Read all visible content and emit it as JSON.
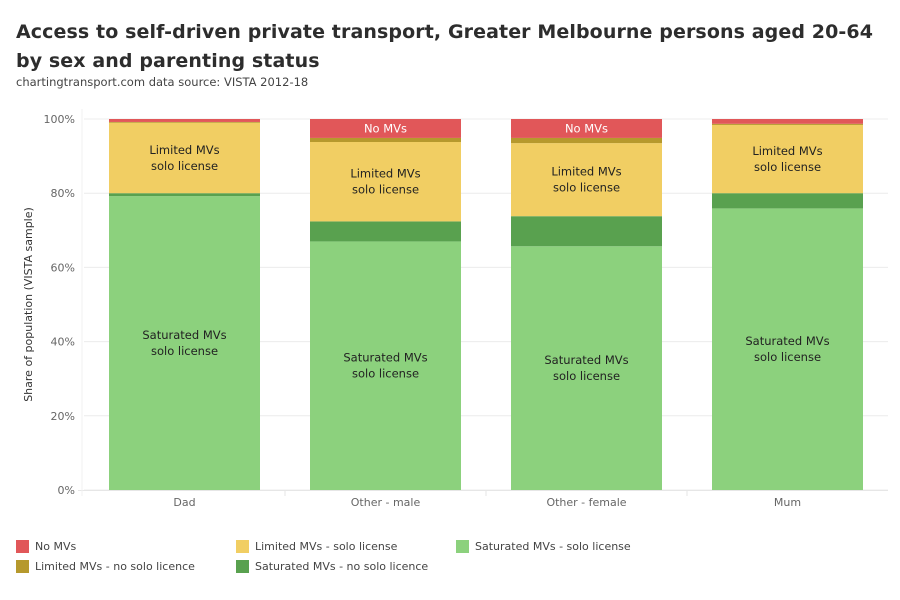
{
  "header": {
    "title": "Access to self-driven private transport, Greater Melbourne persons aged 20-64 by sex and parenting status",
    "subtitle": "chartingtransport.com  data source: VISTA 2012-18"
  },
  "chart_data": {
    "type": "bar",
    "stacked": true,
    "title": "Access to self-driven private transport, Greater Melbourne persons aged 20-64 by sex and parenting status",
    "xlabel": "",
    "ylabel": "Share of population (VISTA sample)",
    "ylim": [
      0,
      100
    ],
    "yticks": [
      "0%",
      "20%",
      "40%",
      "60%",
      "80%",
      "100%"
    ],
    "ytick_values": [
      0,
      20,
      40,
      60,
      80,
      100
    ],
    "grid": true,
    "legend_position": "bottom",
    "categories": [
      "Dad",
      "Other - male",
      "Other - female",
      "Mum"
    ],
    "series": [
      {
        "name": "Saturated MVs - solo license",
        "color": "#8cd17d",
        "values": [
          79.2,
          67.0,
          65.7,
          75.9
        ],
        "label": [
          "Saturated MVs",
          "solo license"
        ]
      },
      {
        "name": "Saturated MVs - no solo licence",
        "color": "#59a14f",
        "values": [
          0.8,
          5.4,
          8.1,
          4.1
        ],
        "label": null
      },
      {
        "name": "Limited MVs - solo license",
        "color": "#f1ce63",
        "values": [
          19.0,
          21.4,
          19.7,
          18.4
        ],
        "label": [
          "Limited MVs",
          "solo license"
        ]
      },
      {
        "name": "Limited MVs - no solo licence",
        "color": "#b6992d",
        "values": [
          0.2,
          1.1,
          1.4,
          0.3
        ],
        "label": null
      },
      {
        "name": "No MVs",
        "color": "#e15759",
        "values": [
          0.8,
          5.1,
          5.1,
          1.3
        ],
        "label": [
          "No MVs"
        ],
        "label_min": 3
      }
    ]
  },
  "legend": {
    "items": [
      {
        "name": "No MVs",
        "color": "#e15759"
      },
      {
        "name": "Limited MVs - no solo licence",
        "color": "#b6992d"
      },
      {
        "name": "Limited MVs - solo license",
        "color": "#f1ce63"
      },
      {
        "name": "Saturated MVs - no solo licence",
        "color": "#59a14f"
      },
      {
        "name": "Saturated MVs - solo license",
        "color": "#8cd17d"
      }
    ]
  }
}
